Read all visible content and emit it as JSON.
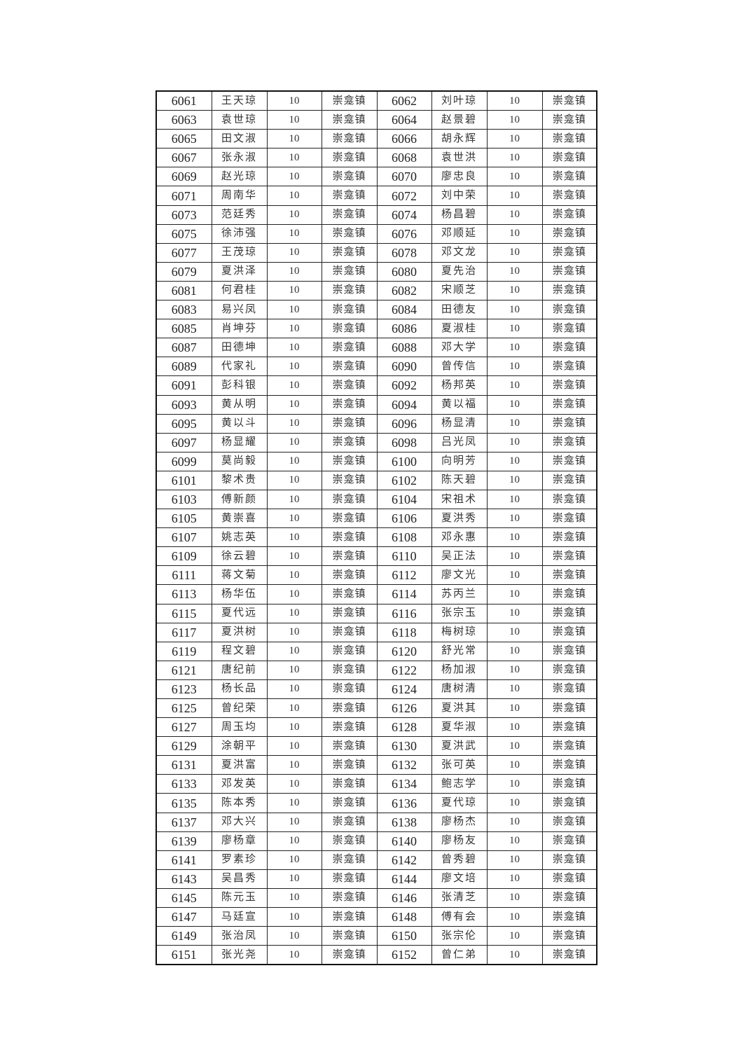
{
  "table": {
    "rows": [
      {
        "id1": "6061",
        "name1": "王天琼",
        "amount1": "10",
        "town1": "崇龛镇",
        "id2": "6062",
        "name2": "刘叶琼",
        "amount2": "10",
        "town2": "崇龛镇"
      },
      {
        "id1": "6063",
        "name1": "袁世琼",
        "amount1": "10",
        "town1": "崇龛镇",
        "id2": "6064",
        "name2": "赵景碧",
        "amount2": "10",
        "town2": "崇龛镇"
      },
      {
        "id1": "6065",
        "name1": "田文淑",
        "amount1": "10",
        "town1": "崇龛镇",
        "id2": "6066",
        "name2": "胡永辉",
        "amount2": "10",
        "town2": "崇龛镇"
      },
      {
        "id1": "6067",
        "name1": "张永淑",
        "amount1": "10",
        "town1": "崇龛镇",
        "id2": "6068",
        "name2": "袁世洪",
        "amount2": "10",
        "town2": "崇龛镇"
      },
      {
        "id1": "6069",
        "name1": "赵光琼",
        "amount1": "10",
        "town1": "崇龛镇",
        "id2": "6070",
        "name2": "廖忠良",
        "amount2": "10",
        "town2": "崇龛镇"
      },
      {
        "id1": "6071",
        "name1": "周南华",
        "amount1": "10",
        "town1": "崇龛镇",
        "id2": "6072",
        "name2": "刘中荣",
        "amount2": "10",
        "town2": "崇龛镇"
      },
      {
        "id1": "6073",
        "name1": "范廷秀",
        "amount1": "10",
        "town1": "崇龛镇",
        "id2": "6074",
        "name2": "杨昌碧",
        "amount2": "10",
        "town2": "崇龛镇"
      },
      {
        "id1": "6075",
        "name1": "徐沛强",
        "amount1": "10",
        "town1": "崇龛镇",
        "id2": "6076",
        "name2": "邓顺延",
        "amount2": "10",
        "town2": "崇龛镇"
      },
      {
        "id1": "6077",
        "name1": "王茂琼",
        "amount1": "10",
        "town1": "崇龛镇",
        "id2": "6078",
        "name2": "邓文龙",
        "amount2": "10",
        "town2": "崇龛镇"
      },
      {
        "id1": "6079",
        "name1": "夏洪泽",
        "amount1": "10",
        "town1": "崇龛镇",
        "id2": "6080",
        "name2": "夏先治",
        "amount2": "10",
        "town2": "崇龛镇"
      },
      {
        "id1": "6081",
        "name1": "何君桂",
        "amount1": "10",
        "town1": "崇龛镇",
        "id2": "6082",
        "name2": "宋顺芝",
        "amount2": "10",
        "town2": "崇龛镇"
      },
      {
        "id1": "6083",
        "name1": "易兴凤",
        "amount1": "10",
        "town1": "崇龛镇",
        "id2": "6084",
        "name2": "田德友",
        "amount2": "10",
        "town2": "崇龛镇"
      },
      {
        "id1": "6085",
        "name1": "肖坤芬",
        "amount1": "10",
        "town1": "崇龛镇",
        "id2": "6086",
        "name2": "夏淑桂",
        "amount2": "10",
        "town2": "崇龛镇"
      },
      {
        "id1": "6087",
        "name1": "田德坤",
        "amount1": "10",
        "town1": "崇龛镇",
        "id2": "6088",
        "name2": "邓大学",
        "amount2": "10",
        "town2": "崇龛镇"
      },
      {
        "id1": "6089",
        "name1": "代家礼",
        "amount1": "10",
        "town1": "崇龛镇",
        "id2": "6090",
        "name2": "曾传信",
        "amount2": "10",
        "town2": "崇龛镇"
      },
      {
        "id1": "6091",
        "name1": "彭科银",
        "amount1": "10",
        "town1": "崇龛镇",
        "id2": "6092",
        "name2": "杨邦英",
        "amount2": "10",
        "town2": "崇龛镇"
      },
      {
        "id1": "6093",
        "name1": "黄从明",
        "amount1": "10",
        "town1": "崇龛镇",
        "id2": "6094",
        "name2": "黄以福",
        "amount2": "10",
        "town2": "崇龛镇"
      },
      {
        "id1": "6095",
        "name1": "黄以斗",
        "amount1": "10",
        "town1": "崇龛镇",
        "id2": "6096",
        "name2": "杨显清",
        "amount2": "10",
        "town2": "崇龛镇"
      },
      {
        "id1": "6097",
        "name1": "杨显耀",
        "amount1": "10",
        "town1": "崇龛镇",
        "id2": "6098",
        "name2": "吕光凤",
        "amount2": "10",
        "town2": "崇龛镇"
      },
      {
        "id1": "6099",
        "name1": "莫尚毅",
        "amount1": "10",
        "town1": "崇龛镇",
        "id2": "6100",
        "name2": "向明芳",
        "amount2": "10",
        "town2": "崇龛镇"
      },
      {
        "id1": "6101",
        "name1": "黎术贵",
        "amount1": "10",
        "town1": "崇龛镇",
        "id2": "6102",
        "name2": "陈天碧",
        "amount2": "10",
        "town2": "崇龛镇"
      },
      {
        "id1": "6103",
        "name1": "傅新颜",
        "amount1": "10",
        "town1": "崇龛镇",
        "id2": "6104",
        "name2": "宋祖术",
        "amount2": "10",
        "town2": "崇龛镇"
      },
      {
        "id1": "6105",
        "name1": "黄崇喜",
        "amount1": "10",
        "town1": "崇龛镇",
        "id2": "6106",
        "name2": "夏洪秀",
        "amount2": "10",
        "town2": "崇龛镇"
      },
      {
        "id1": "6107",
        "name1": "姚志英",
        "amount1": "10",
        "town1": "崇龛镇",
        "id2": "6108",
        "name2": "邓永惠",
        "amount2": "10",
        "town2": "崇龛镇"
      },
      {
        "id1": "6109",
        "name1": "徐云碧",
        "amount1": "10",
        "town1": "崇龛镇",
        "id2": "6110",
        "name2": "吴正法",
        "amount2": "10",
        "town2": "崇龛镇"
      },
      {
        "id1": "6111",
        "name1": "蒋文菊",
        "amount1": "10",
        "town1": "崇龛镇",
        "id2": "6112",
        "name2": "廖文光",
        "amount2": "10",
        "town2": "崇龛镇"
      },
      {
        "id1": "6113",
        "name1": "杨华伍",
        "amount1": "10",
        "town1": "崇龛镇",
        "id2": "6114",
        "name2": "苏丙兰",
        "amount2": "10",
        "town2": "崇龛镇"
      },
      {
        "id1": "6115",
        "name1": "夏代远",
        "amount1": "10",
        "town1": "崇龛镇",
        "id2": "6116",
        "name2": "张宗玉",
        "amount2": "10",
        "town2": "崇龛镇"
      },
      {
        "id1": "6117",
        "name1": "夏洪树",
        "amount1": "10",
        "town1": "崇龛镇",
        "id2": "6118",
        "name2": "梅树琼",
        "amount2": "10",
        "town2": "崇龛镇"
      },
      {
        "id1": "6119",
        "name1": "程文碧",
        "amount1": "10",
        "town1": "崇龛镇",
        "id2": "6120",
        "name2": "舒光常",
        "amount2": "10",
        "town2": "崇龛镇"
      },
      {
        "id1": "6121",
        "name1": "唐纪前",
        "amount1": "10",
        "town1": "崇龛镇",
        "id2": "6122",
        "name2": "杨加淑",
        "amount2": "10",
        "town2": "崇龛镇"
      },
      {
        "id1": "6123",
        "name1": "杨长品",
        "amount1": "10",
        "town1": "崇龛镇",
        "id2": "6124",
        "name2": "唐树清",
        "amount2": "10",
        "town2": "崇龛镇"
      },
      {
        "id1": "6125",
        "name1": "曾纪荣",
        "amount1": "10",
        "town1": "崇龛镇",
        "id2": "6126",
        "name2": "夏洪其",
        "amount2": "10",
        "town2": "崇龛镇"
      },
      {
        "id1": "6127",
        "name1": "周玉均",
        "amount1": "10",
        "town1": "崇龛镇",
        "id2": "6128",
        "name2": "夏华淑",
        "amount2": "10",
        "town2": "崇龛镇"
      },
      {
        "id1": "6129",
        "name1": "涂朝平",
        "amount1": "10",
        "town1": "崇龛镇",
        "id2": "6130",
        "name2": "夏洪武",
        "amount2": "10",
        "town2": "崇龛镇"
      },
      {
        "id1": "6131",
        "name1": "夏洪富",
        "amount1": "10",
        "town1": "崇龛镇",
        "id2": "6132",
        "name2": "张可英",
        "amount2": "10",
        "town2": "崇龛镇"
      },
      {
        "id1": "6133",
        "name1": "邓发英",
        "amount1": "10",
        "town1": "崇龛镇",
        "id2": "6134",
        "name2": "鲍志学",
        "amount2": "10",
        "town2": "崇龛镇"
      },
      {
        "id1": "6135",
        "name1": "陈本秀",
        "amount1": "10",
        "town1": "崇龛镇",
        "id2": "6136",
        "name2": "夏代琼",
        "amount2": "10",
        "town2": "崇龛镇"
      },
      {
        "id1": "6137",
        "name1": "邓大兴",
        "amount1": "10",
        "town1": "崇龛镇",
        "id2": "6138",
        "name2": "廖杨杰",
        "amount2": "10",
        "town2": "崇龛镇"
      },
      {
        "id1": "6139",
        "name1": "廖杨章",
        "amount1": "10",
        "town1": "崇龛镇",
        "id2": "6140",
        "name2": "廖杨友",
        "amount2": "10",
        "town2": "崇龛镇"
      },
      {
        "id1": "6141",
        "name1": "罗素珍",
        "amount1": "10",
        "town1": "崇龛镇",
        "id2": "6142",
        "name2": "曾秀碧",
        "amount2": "10",
        "town2": "崇龛镇"
      },
      {
        "id1": "6143",
        "name1": "吴昌秀",
        "amount1": "10",
        "town1": "崇龛镇",
        "id2": "6144",
        "name2": "廖文培",
        "amount2": "10",
        "town2": "崇龛镇"
      },
      {
        "id1": "6145",
        "name1": "陈元玉",
        "amount1": "10",
        "town1": "崇龛镇",
        "id2": "6146",
        "name2": "张清芝",
        "amount2": "10",
        "town2": "崇龛镇"
      },
      {
        "id1": "6147",
        "name1": "马廷宣",
        "amount1": "10",
        "town1": "崇龛镇",
        "id2": "6148",
        "name2": "傅有会",
        "amount2": "10",
        "town2": "崇龛镇"
      },
      {
        "id1": "6149",
        "name1": "张治凤",
        "amount1": "10",
        "town1": "崇龛镇",
        "id2": "6150",
        "name2": "张宗伦",
        "amount2": "10",
        "town2": "崇龛镇"
      },
      {
        "id1": "6151",
        "name1": "张光尧",
        "amount1": "10",
        "town1": "崇龛镇",
        "id2": "6152",
        "name2": "曾仁弟",
        "amount2": "10",
        "town2": "崇龛镇"
      }
    ]
  }
}
